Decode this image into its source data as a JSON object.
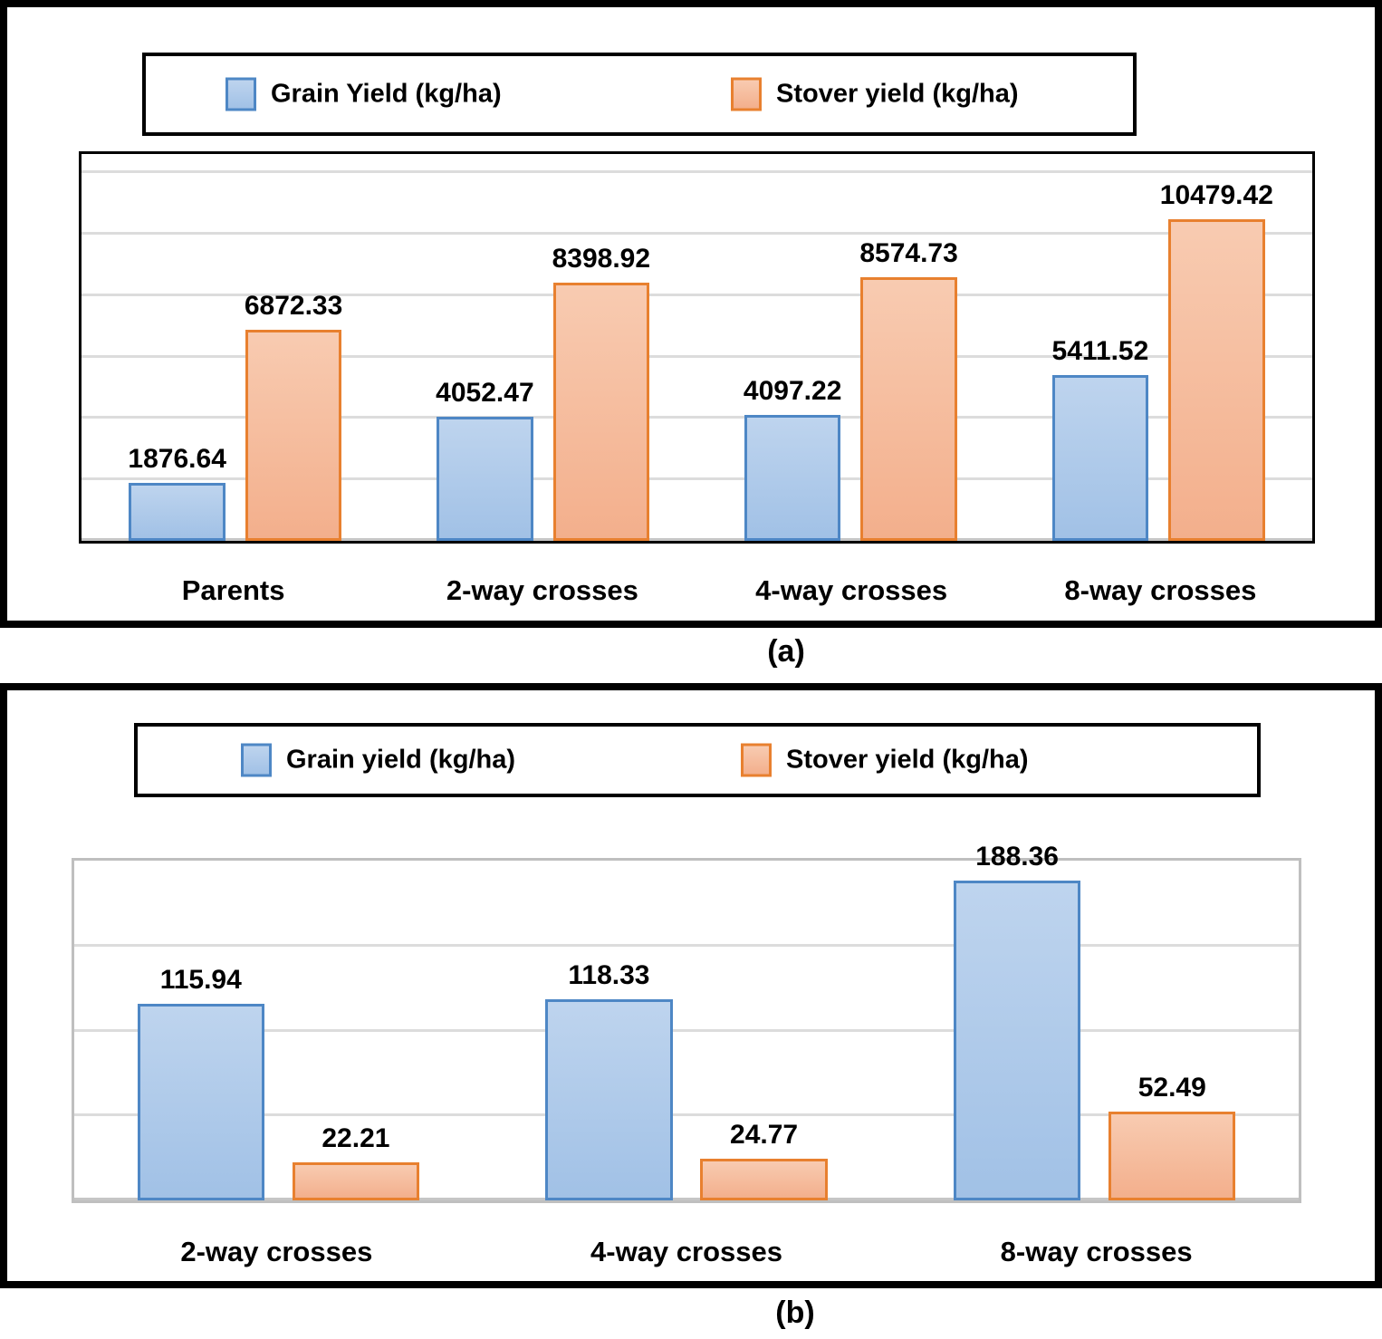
{
  "colors": {
    "grain_border": "#4E87C5",
    "grain_fill_top": "#BED4EE",
    "grain_fill_bottom": "#A1C1E6",
    "stover_border": "#E8802F",
    "stover_fill_top": "#F8CBB1",
    "stover_fill_bottom": "#F3AF8C",
    "gridline": "#DCDCDC",
    "axis_line": "#C6C6C6",
    "plot_border_a": "#000000",
    "plot_border_b": "#BFBFBF",
    "panel_border": "#000000",
    "text": "#000000",
    "background": "#FFFFFF"
  },
  "panels": [
    {
      "caption": "(a)",
      "legend": [
        {
          "label": "Grain Yield (kg/ha)"
        },
        {
          "label": "Stover yield (kg/ha)"
        }
      ]
    },
    {
      "caption": "(b)",
      "legend": [
        {
          "label": "Grain yield (kg/ha)"
        },
        {
          "label": "Stover yield (kg/ha)"
        }
      ]
    }
  ],
  "chart_data": [
    {
      "type": "bar",
      "title": "",
      "xlabel": "",
      "ylabel": "",
      "legend_position": "top",
      "grid": true,
      "categories": [
        "Parents",
        "2-way crosses",
        "4-way crosses",
        "8-way crosses"
      ],
      "series": [
        {
          "name": "Grain Yield (kg/ha)",
          "color_key": "grain",
          "values": [
            1876.64,
            4052.47,
            4097.22,
            5411.52
          ],
          "labels": [
            "1876.64",
            "4052.47",
            "4097.22",
            "5411.52"
          ]
        },
        {
          "name": "Stover yield (kg/ha)",
          "color_key": "stover",
          "values": [
            6872.33,
            8398.92,
            8574.73,
            10479.42
          ],
          "labels": [
            "6872.33",
            "8398.92",
            "8574.73",
            "10479.42"
          ]
        }
      ],
      "ylim": [
        0,
        12600
      ],
      "axis_max_labelled": 12000,
      "gridline_step": 2000,
      "gridline_values": [
        2000,
        4000,
        6000,
        8000,
        10000,
        12000
      ],
      "bar_width_pct": 7.84,
      "bar_gap_pct": 1.61
    },
    {
      "type": "bar",
      "title": "",
      "xlabel": "",
      "ylabel": "",
      "legend_position": "top",
      "grid": true,
      "categories": [
        "2-way crosses",
        "4-way crosses",
        "8-way crosses"
      ],
      "series": [
        {
          "name": "Grain yield (kg/ha)",
          "color_key": "grain",
          "values": [
            115.94,
            118.33,
            188.36
          ],
          "labels": [
            "115.94",
            "118.33",
            "188.36"
          ]
        },
        {
          "name": "Stover yield (kg/ha)",
          "color_key": "stover",
          "values": [
            22.21,
            24.77,
            52.49
          ],
          "labels": [
            "22.21",
            "24.77",
            "52.49"
          ]
        }
      ],
      "ylim": [
        0,
        200
      ],
      "axis_max_labelled": 200,
      "gridline_step": 50,
      "gridline_values": [
        50,
        100,
        150
      ],
      "bar_width_pct": 10.38,
      "bar_gap_pct": 2.28
    }
  ]
}
